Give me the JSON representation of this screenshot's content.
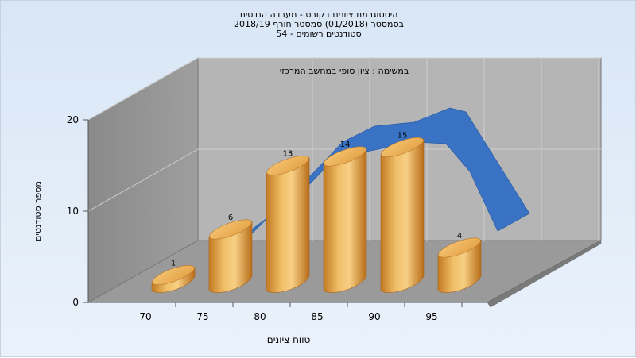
{
  "header": {
    "line1": "היסטוגרמת ציונים בקורס - מעבדה הנדסית",
    "line2": "בסמסטר (01/2018) סמסטר חורף 2018/19",
    "line3": "סטודנטים רשומים - 54"
  },
  "chart_data": {
    "type": "bar",
    "subtitle": "במשימה : ציון סופי במחשב המרכזי",
    "xlabel": "טווח ציונים",
    "ylabel": "מספר סטודנטים",
    "x_ticks": [
      "70",
      "75",
      "80",
      "85",
      "90",
      "95"
    ],
    "y_ticks": [
      "0",
      "10",
      "20"
    ],
    "ylim": [
      0,
      20
    ],
    "categories": [
      "70-75",
      "75-80",
      "80-85",
      "85-90",
      "90-95",
      "95-100"
    ],
    "values": [
      1,
      6,
      13,
      14,
      15,
      4
    ],
    "data_labels": [
      "1",
      "6",
      "13",
      "14",
      "15",
      "4"
    ],
    "trend": {
      "type": "area-ribbon",
      "x_centers": [
        77.5,
        82.5,
        87.5,
        92.5,
        97.5,
        100
      ],
      "y": [
        7.5,
        14.5,
        19.2,
        19.7,
        17.5,
        8
      ],
      "color": "#3a72c4"
    },
    "bar_color": "#e6a94d",
    "grid": true
  }
}
